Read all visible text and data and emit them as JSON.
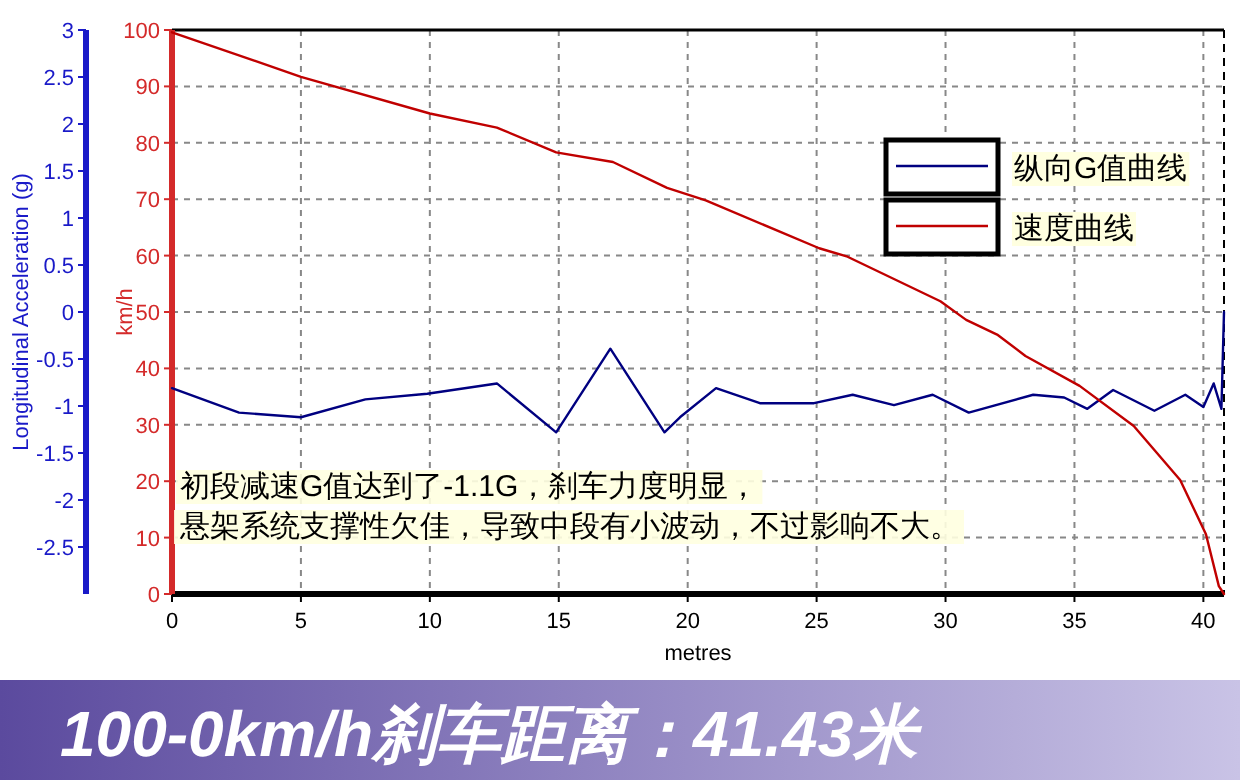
{
  "chart_data": {
    "type": "line",
    "title": "100-0km/h刹车距离：41.43米",
    "xlabel": "metres",
    "ylabel": "km/h",
    "y2label": "Longitudinal Acceleration (g)",
    "annotations": [
      "初段减速G值达到了-1.1G，刹车力度明显，",
      "悬架系统支撑性欠佳，导致中段有小波动，不过影响不大。"
    ],
    "xlim": [
      0,
      40.8
    ],
    "xticks": [
      0,
      5,
      10,
      15,
      20,
      25,
      30,
      35,
      40
    ],
    "ylim": [
      0,
      100
    ],
    "yticks": [
      0,
      10,
      20,
      30,
      40,
      50,
      60,
      70,
      80,
      90,
      100
    ],
    "y2lim": [
      -3,
      3
    ],
    "y2ticks": [
      -2.5,
      -2,
      -1.5,
      -1,
      -0.5,
      0,
      0.5,
      1,
      1.5,
      2,
      2.5,
      3
    ],
    "grid": true,
    "legend": "top right",
    "line_style": "solid",
    "marker": "none",
    "series": [
      {
        "name": "纵向G值曲线",
        "color": "#000080",
        "axis": "y2",
        "x": [
          0,
          2.6,
          5,
          7.5,
          9.9,
          12.6,
          14.9,
          17,
          19.1,
          19.7,
          21.1,
          22.8,
          24.9,
          26.4,
          28,
          29.5,
          30.9,
          33.4,
          34.6,
          35.5,
          36.5,
          38.1,
          39.3,
          40,
          40.4,
          40.7,
          40.8
        ],
        "values": [
          -0.81,
          -1.07,
          -1.12,
          -0.93,
          -0.87,
          -0.76,
          -1.28,
          -0.39,
          -1.28,
          -1.12,
          -0.81,
          -0.97,
          -0.97,
          -0.88,
          -0.99,
          -0.88,
          -1.07,
          -0.88,
          -0.91,
          -1.03,
          -0.83,
          -1.05,
          -0.88,
          -1.01,
          -0.76,
          -1.03,
          0
        ]
      },
      {
        "name": "速度曲线",
        "color": "#c00000",
        "x": [
          0,
          5,
          10,
          12.6,
          14.9,
          17.1,
          19.2,
          20.7,
          25.1,
          26.2,
          29.8,
          30.8,
          32,
          33.1,
          35.2,
          37.3,
          39.1,
          40.1,
          40.6,
          40.8
        ],
        "values": [
          99.6,
          91.7,
          85.2,
          82.7,
          78.3,
          76.6,
          72,
          69.8,
          61.3,
          59.8,
          51.9,
          48.6,
          46,
          42.2,
          36.9,
          29.8,
          20.2,
          10.6,
          1.4,
          0
        ]
      }
    ]
  }
}
